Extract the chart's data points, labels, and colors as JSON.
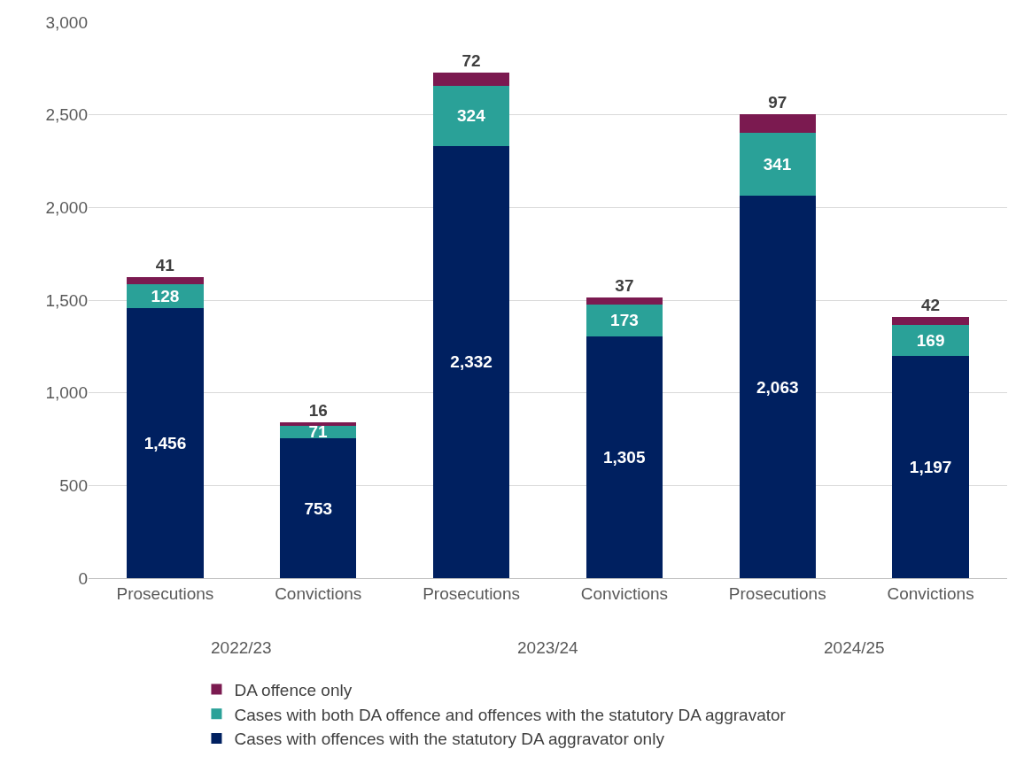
{
  "chart_data": {
    "type": "bar",
    "stacked": true,
    "categories": [
      "Prosecutions",
      "Convictions",
      "Prosecutions",
      "Convictions",
      "Prosecutions",
      "Convictions"
    ],
    "series": [
      {
        "name": "Cases with offences with the statutory DA aggravator only",
        "color": "#002060",
        "values": [
          1456,
          753,
          2332,
          1305,
          2063,
          1197
        ],
        "value_labels": [
          "1,456",
          "753",
          "2,332",
          "1,305",
          "2,063",
          "1,197"
        ]
      },
      {
        "name": "Cases with both DA offence and offences with the statutory DA aggravator",
        "color": "#2aa198",
        "values": [
          128,
          71,
          324,
          173,
          341,
          169
        ],
        "value_labels": [
          "128",
          "71",
          "324",
          "173",
          "341",
          "169"
        ]
      },
      {
        "name": "DA offence only",
        "color": "#7b1a50",
        "values": [
          41,
          16,
          72,
          37,
          97,
          42
        ],
        "value_labels": [
          "41",
          "16",
          "72",
          "37",
          "97",
          "42"
        ]
      }
    ],
    "annotations": [
      "2022/23",
      "2023/24",
      "2024/25"
    ],
    "ylim": [
      0,
      3000
    ],
    "yticks": [
      0,
      500,
      {
        "value": 1000,
        "label": "1,000"
      },
      {
        "value": 1500,
        "label": "1,500"
      },
      {
        "value": 2000,
        "label": "2,000"
      },
      {
        "value": 2500,
        "label": "2,500"
      },
      {
        "value": 3000,
        "label": "3,000"
      }
    ],
    "grid": "y",
    "legend": "bottom"
  }
}
